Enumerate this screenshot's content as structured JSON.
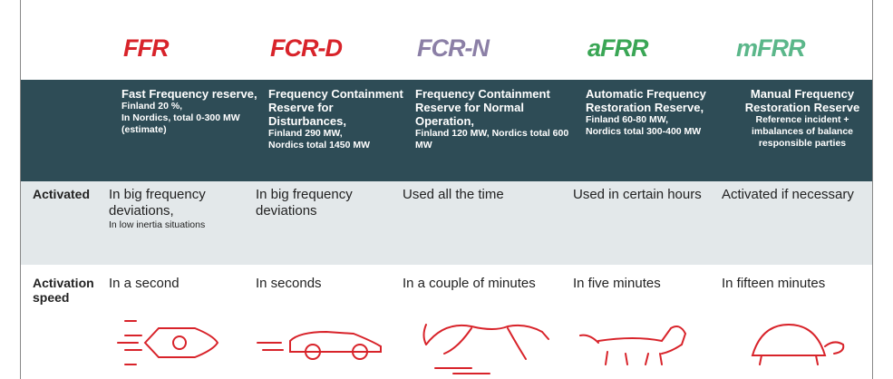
{
  "logos": [
    "FFR",
    "FCR-D",
    "FCR-N",
    "aFRR",
    "mFRR"
  ],
  "columns": [
    {
      "title": "Fast Frequency reserve,",
      "detail": [
        "Finland 20 %,",
        "In Nordics, total 0-300 MW (estimate)"
      ]
    },
    {
      "title": "Frequency Containment Reserve for Disturbances,",
      "detail": [
        "Finland 290 MW,",
        "Nordics total 1450 MW"
      ]
    },
    {
      "title": "Frequency Containment Reserve for Normal Operation,",
      "detail": [
        "Finland 120 MW, Nordics total 600 MW"
      ]
    },
    {
      "title": "Automatic Frequency Restoration Reserve,",
      "detail": [
        "Finland 60-80 MW,",
        "Nordics total 300-400 MW"
      ]
    },
    {
      "title": "Manual Frequency Restoration Reserve",
      "detail": [
        "Reference incident + imbalances of balance responsible parties"
      ]
    }
  ],
  "rows": [
    {
      "label": "Activated",
      "cells": [
        {
          "text": "In big frequency deviations,",
          "note": "In low inertia situations"
        },
        {
          "text": "In big frequency deviations"
        },
        {
          "text": "Used all the time"
        },
        {
          "text": "Used in certain hours"
        },
        {
          "text": "Activated if necessary"
        }
      ]
    },
    {
      "label": "Activation speed",
      "cells": [
        {
          "text": "In a second"
        },
        {
          "text": "In seconds"
        },
        {
          "text": "In a couple of minutes"
        },
        {
          "text": "In five minutes"
        },
        {
          "text": "In fifteen minutes"
        }
      ]
    }
  ]
}
